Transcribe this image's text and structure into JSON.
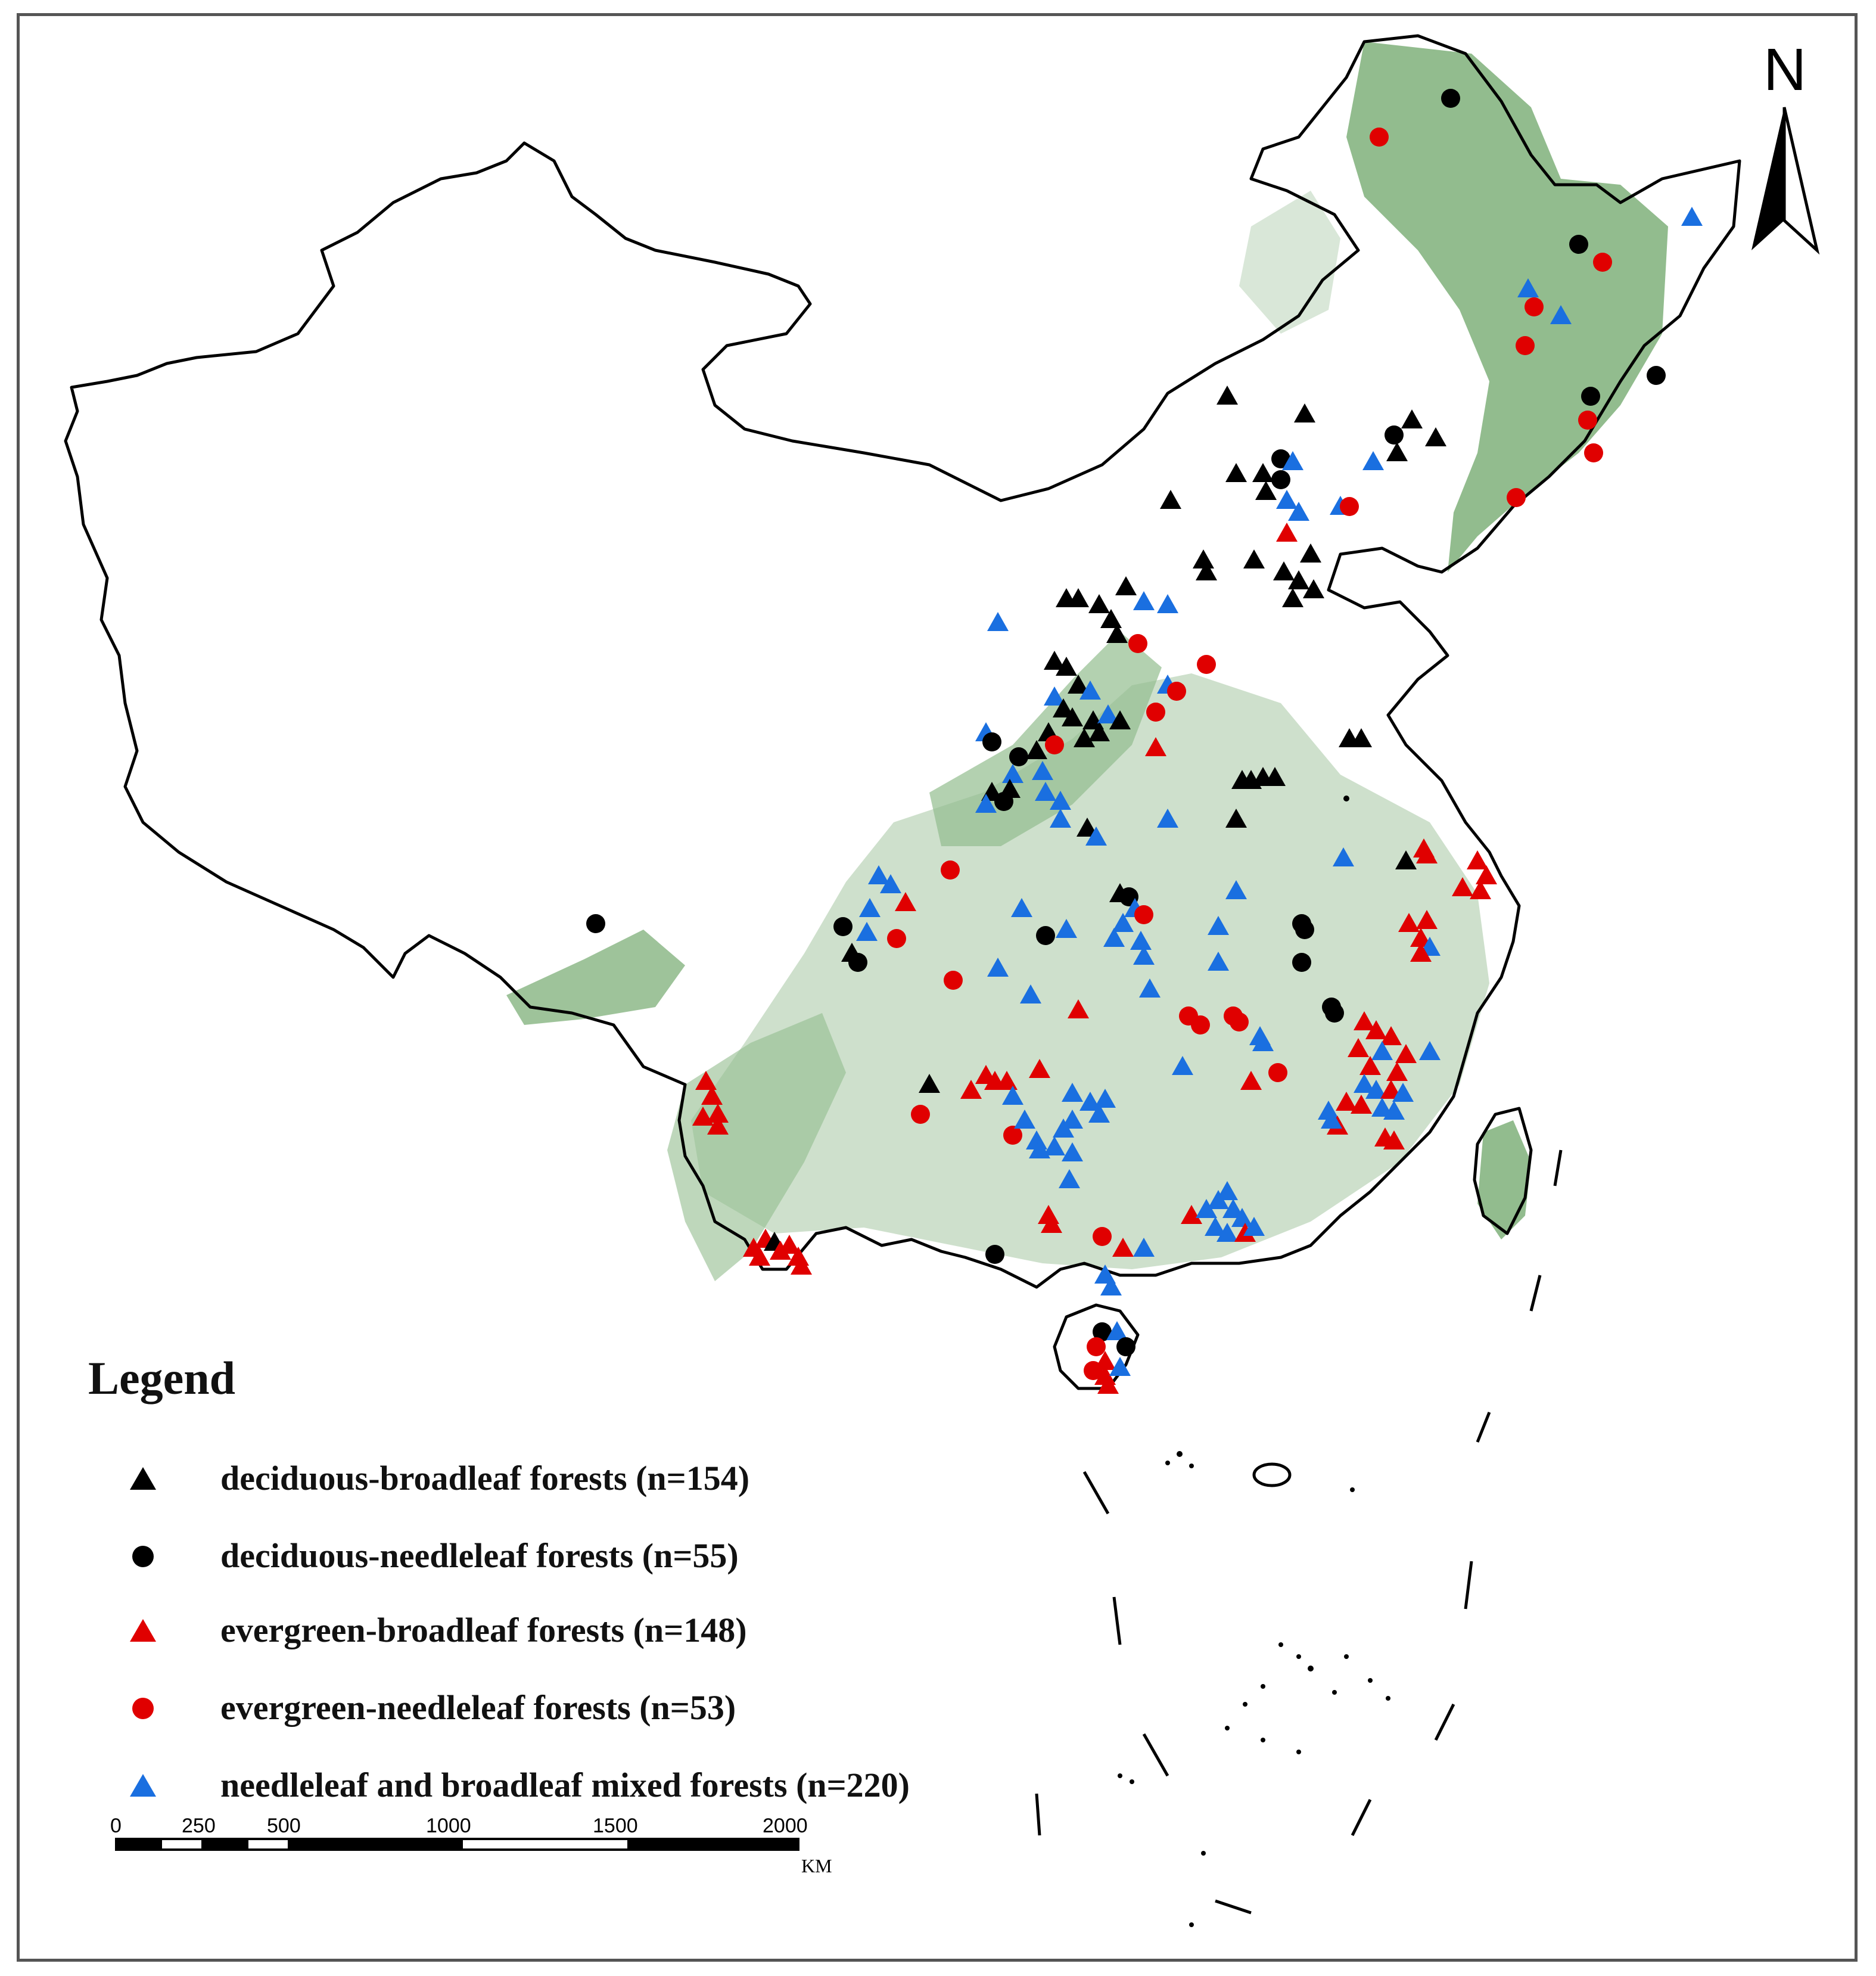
{
  "colors": {
    "forest": "#7fb07a",
    "outline": "#000000",
    "black_symbol": "#000000",
    "red_symbol": "#e00000",
    "blue_symbol": "#1a6fe0"
  },
  "north_arrow": {
    "label": "N"
  },
  "legend": {
    "title": "Legend",
    "items": [
      {
        "symbol": "triangle",
        "color": "#000000",
        "label": "deciduous-broadleaf forests (n=154)"
      },
      {
        "symbol": "circle",
        "color": "#000000",
        "label": "deciduous-needleleaf forests (n=55)"
      },
      {
        "symbol": "triangle",
        "color": "#e00000",
        "label": "evergreen-broadleaf forests (n=148)"
      },
      {
        "symbol": "circle",
        "color": "#e00000",
        "label": "evergreen-needleleaf forests (n=53)"
      },
      {
        "symbol": "triangle",
        "color": "#1a6fe0",
        "label": "needleleaf and broadleaf mixed forests (n=220)"
      }
    ]
  },
  "scale_bar": {
    "ticks": [
      "0",
      "250",
      "500",
      "1000",
      "1500",
      "2000"
    ],
    "unit": "KM"
  }
}
